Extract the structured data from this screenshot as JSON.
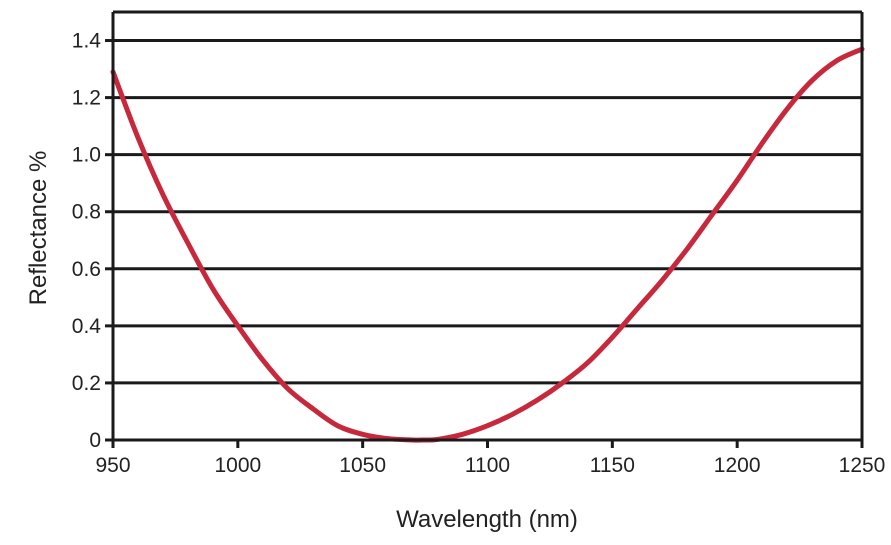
{
  "chart_data": {
    "type": "line",
    "title": "",
    "xlabel": "Wavelength (nm)",
    "ylabel": "Reflectance %",
    "xlim": [
      950,
      1250
    ],
    "ylim": [
      0,
      1.5
    ],
    "x_ticks": [
      950,
      1000,
      1050,
      1100,
      1150,
      1200,
      1250
    ],
    "x_tick_labels": [
      "950",
      "1000",
      "1050",
      "1100",
      "1150",
      "1200",
      "1250"
    ],
    "y_ticks": [
      0,
      0.2,
      0.4,
      0.6,
      0.8,
      1.0,
      1.2,
      1.4
    ],
    "y_tick_labels": [
      "0",
      "0.2",
      "0.4",
      "0.6",
      "0.8",
      "1.0",
      "1.2",
      "1.4"
    ],
    "grid": "horizontal",
    "line_color": "#c8283c",
    "series": [
      {
        "x": [
          950,
          960,
          970,
          980,
          990,
          1000,
          1010,
          1020,
          1030,
          1040,
          1050,
          1060,
          1070,
          1075,
          1080,
          1090,
          1100,
          1110,
          1120,
          1130,
          1140,
          1150,
          1160,
          1170,
          1180,
          1190,
          1200,
          1210,
          1220,
          1230,
          1240,
          1250
        ],
        "y": [
          1.29,
          1.06,
          0.86,
          0.69,
          0.53,
          0.4,
          0.28,
          0.18,
          0.11,
          0.05,
          0.02,
          0.005,
          0.0,
          0.0,
          0.002,
          0.02,
          0.05,
          0.09,
          0.14,
          0.2,
          0.27,
          0.36,
          0.46,
          0.56,
          0.67,
          0.79,
          0.91,
          1.04,
          1.16,
          1.26,
          1.33,
          1.37
        ]
      }
    ]
  }
}
